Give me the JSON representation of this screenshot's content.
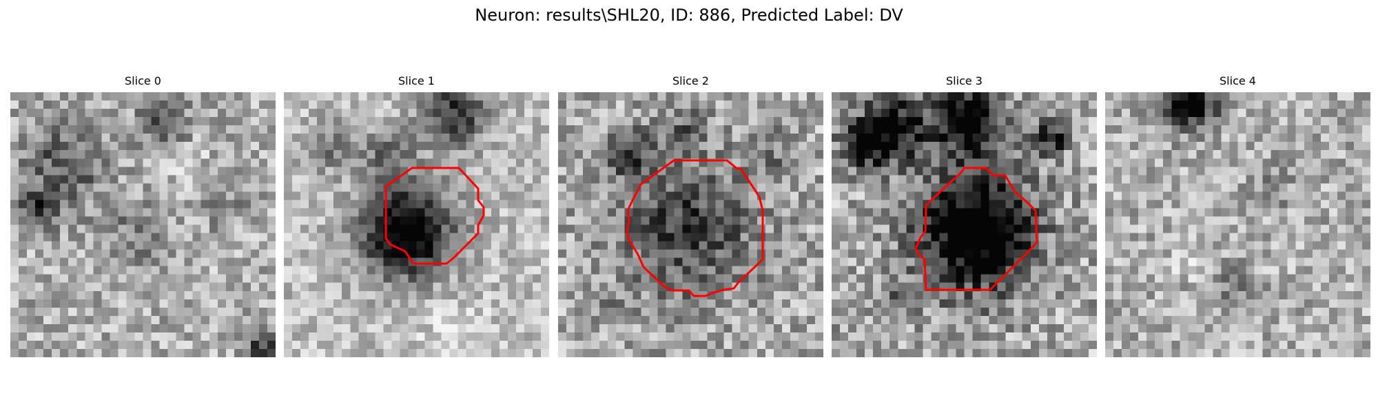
{
  "figure": {
    "title": "Neuron: results\\SHL20, ID: 886, Predicted Label: DV"
  },
  "panels": [
    {
      "title": "Slice 0",
      "has_contour": false
    },
    {
      "title": "Slice 1",
      "has_contour": true
    },
    {
      "title": "Slice 2",
      "has_contour": true
    },
    {
      "title": "Slice 3",
      "has_contour": true
    },
    {
      "title": "Slice 4",
      "has_contour": false
    }
  ],
  "style": {
    "contour_color": "#ff0000",
    "colormap": "gray"
  }
}
